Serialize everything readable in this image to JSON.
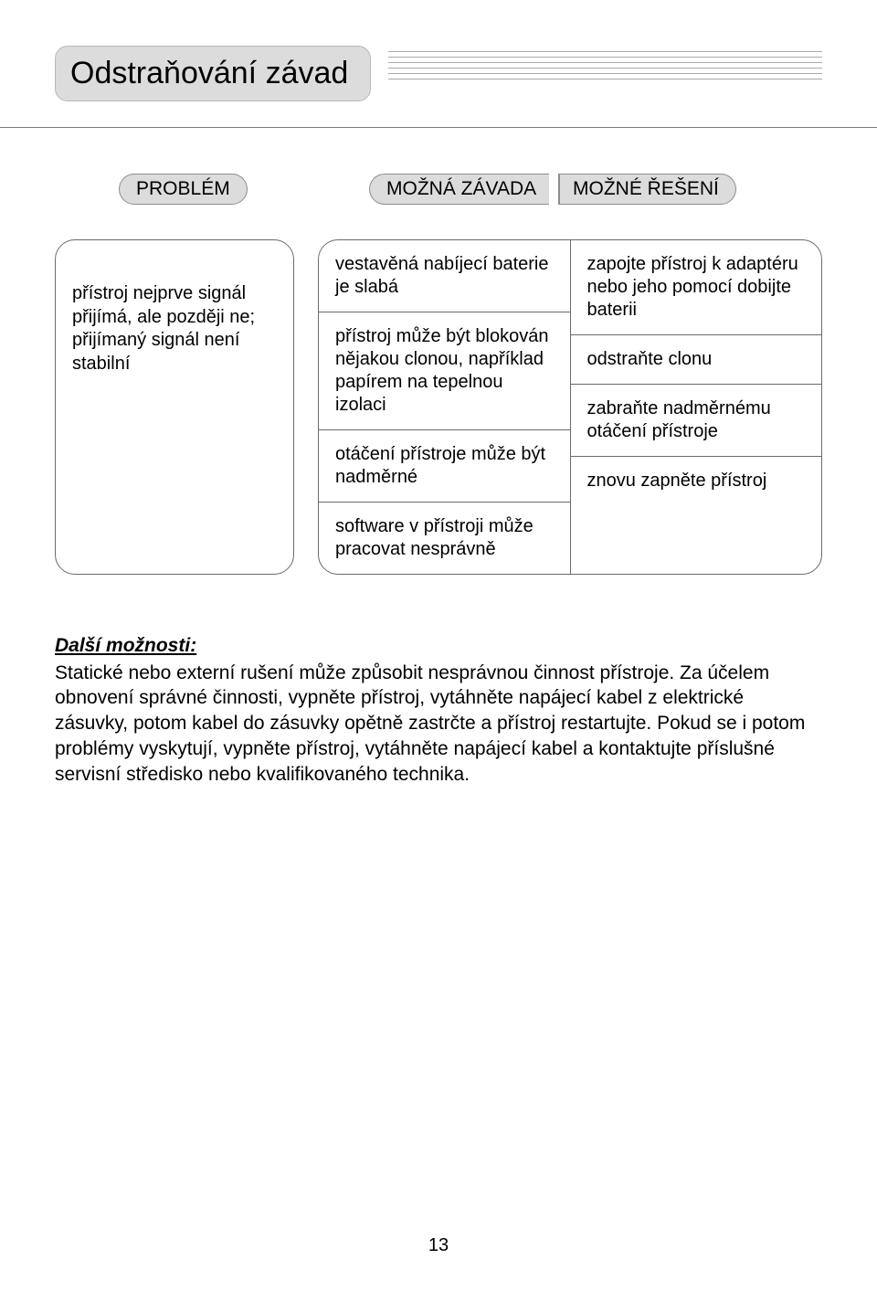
{
  "colors": {
    "pill_bg": "#dcdcdc",
    "pill_border": "#8d8d8d",
    "box_border": "#6a6a6a",
    "line": "#aaaaaa",
    "underline": "#7a7a7a",
    "text": "#000000",
    "bg": "#ffffff"
  },
  "typography": {
    "title_fontsize": 34,
    "header_fontsize": 21,
    "body_fontsize": 20,
    "further_fontsize": 21,
    "font_family": "Arial"
  },
  "title": "Odstraňování závad",
  "headers": {
    "problem": "PROBLÉM",
    "cause": "MOŽNÁ ZÁVADA",
    "solution": "MOŽNÉ ŘEŠENÍ"
  },
  "problem_text": "přístroj nejprve signál přijímá, ale později ne; přijímaný signál není stabilní",
  "rows": [
    {
      "cause": "vestavěná nabíjecí baterie je slabá",
      "solution": "zapojte přístroj k adaptéru nebo jeho pomocí dobijte baterii"
    },
    {
      "cause": "přístroj může být blokován nějakou clonou, například papírem na tepelnou izolaci",
      "solution": "odstraňte clonu"
    },
    {
      "cause": "otáčení přístroje může být nadměrné",
      "solution": "zabraňte nadměrnému otáčení přístroje"
    },
    {
      "cause": "software v přístroji může pracovat nesprávně",
      "solution": "znovu zapněte přístroj"
    }
  ],
  "further": {
    "heading": "Další možnosti:",
    "body": "Statické nebo externí rušení může způsobit nesprávnou činnost přístroje. Za účelem obnovení správné činnosti, vypněte přístroj, vytáhněte napájecí kabel z elektrické zásuvky, potom kabel do zásuvky opětně zastrčte a přístroj restartujte. Pokud se i potom problémy vyskytují, vypněte přístroj, vytáhněte napájecí kabel a kontaktujte příslušné servisní středisko nebo kvalifikovaného technika."
  },
  "page_number": "13"
}
